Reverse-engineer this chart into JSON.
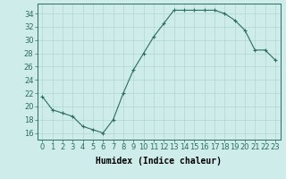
{
  "x": [
    0,
    1,
    2,
    3,
    4,
    5,
    6,
    7,
    8,
    9,
    10,
    11,
    12,
    13,
    14,
    15,
    16,
    17,
    18,
    19,
    20,
    21,
    22,
    23
  ],
  "y": [
    21.5,
    19.5,
    19.0,
    18.5,
    17.0,
    16.5,
    16.0,
    18.0,
    22.0,
    25.5,
    28.0,
    30.5,
    32.5,
    34.5,
    34.5,
    34.5,
    34.5,
    34.5,
    34.0,
    33.0,
    31.5,
    28.5,
    28.5,
    27.0
  ],
  "line_color": "#2d6e5e",
  "marker": "+",
  "marker_size": 3,
  "linewidth": 0.8,
  "bg_color": "#ceecea",
  "grid_color": "#b0d8d4",
  "xlabel": "Humidex (Indice chaleur)",
  "ylabel_ticks": [
    16,
    18,
    20,
    22,
    24,
    26,
    28,
    30,
    32,
    34
  ],
  "xticks": [
    0,
    1,
    2,
    3,
    4,
    5,
    6,
    7,
    8,
    9,
    10,
    11,
    12,
    13,
    14,
    15,
    16,
    17,
    18,
    19,
    20,
    21,
    22,
    23
  ],
  "xlim": [
    -0.5,
    23.5
  ],
  "ylim": [
    15.0,
    35.5
  ],
  "xlabel_fontsize": 7,
  "tick_fontsize": 6
}
